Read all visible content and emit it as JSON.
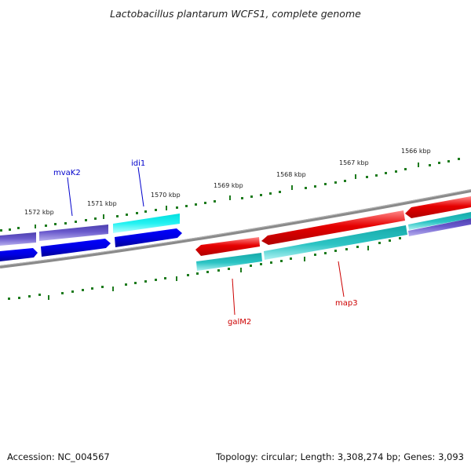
{
  "title": "Lactobacillus plantarum WCFS1, complete genome",
  "footer": {
    "accession": "Accession: NC_004567",
    "summary": "Topology: circular; Length: 3,308,274 bp; Genes: 3,093"
  },
  "scale_labels": [
    "1566 kbp",
    "1567 kbp",
    "1568 kbp",
    "1569 kbp",
    "1570 kbp",
    "1571 kbp",
    "1572 kbp"
  ],
  "gene_labels": {
    "mvaK2": "mvaK2",
    "idi1": "idi1",
    "galM2": "galM2",
    "map3": "map3"
  },
  "colors": {
    "backbone": "#808080",
    "ticks": "#1e7b1e",
    "forward_cds": "#e60000",
    "forward_cds_hi": "#ff9090",
    "cyan_feature": "#19b8b8",
    "cyan_feature_hi": "#9ff0f0",
    "purple_feature": "#6a5acd",
    "blue_feature": "#0000e6",
    "label_blue": "#0000cc",
    "label_red": "#cc0000"
  }
}
